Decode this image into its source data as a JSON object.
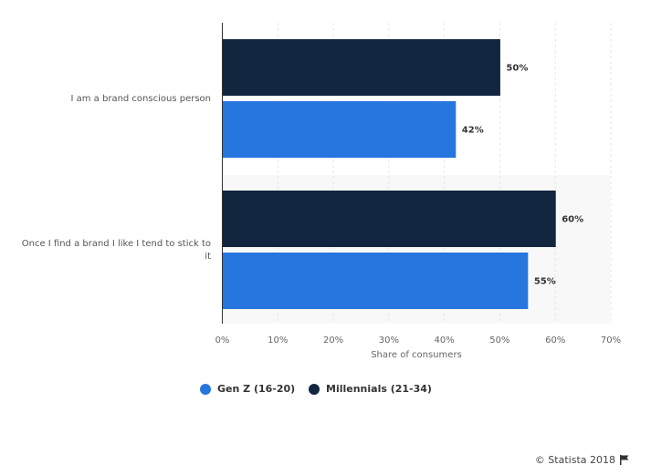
{
  "chart_data": {
    "type": "bar",
    "orientation": "horizontal",
    "categories": [
      "I am a brand conscious person",
      "Once I find a brand I like I tend to stick to it"
    ],
    "series": [
      {
        "name": "Millennials (21-34)",
        "color": "#12263f",
        "values": [
          50,
          60
        ],
        "labels": [
          "50%",
          "60%"
        ]
      },
      {
        "name": "Gen Z (16-20)",
        "color": "#2775de",
        "values": [
          42,
          55
        ],
        "labels": [
          "42%",
          "55%"
        ]
      }
    ],
    "xlabel": "Share of consumers",
    "xlim": [
      0,
      70
    ],
    "xticks": [
      0,
      10,
      20,
      30,
      40,
      50,
      60,
      70
    ],
    "xtick_labels": [
      "0%",
      "10%",
      "20%",
      "30%",
      "40%",
      "50%",
      "60%",
      "70%"
    ],
    "grid": true,
    "legend_position": "bottom"
  },
  "legend": [
    {
      "label": "Gen Z (16-20)",
      "color": "#2775de"
    },
    {
      "label": "Millennials (21-34)",
      "color": "#12263f"
    }
  ],
  "credit": "© Statista 2018"
}
